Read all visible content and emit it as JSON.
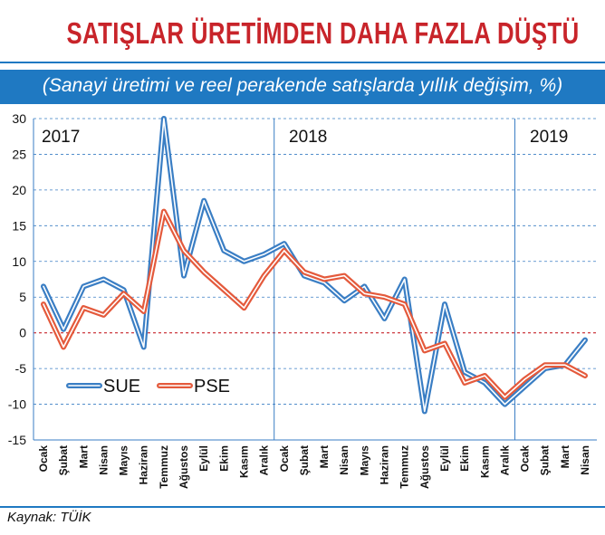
{
  "chart_data": {
    "type": "line",
    "title": "SATIŞLAR ÜRETİMDEN DAHA FAZLA DÜŞTÜ",
    "subtitle": "(Sanayi üretimi ve reel perakende satışlarda yıllık değişim, %)",
    "source": "Kaynak: TÜİK",
    "ylim": [
      -15,
      30
    ],
    "yticks": [
      30,
      25,
      20,
      15,
      10,
      5,
      0,
      -5,
      -10,
      -15
    ],
    "grid": true,
    "legend_position": "bottom-left",
    "categories": [
      "Ocak",
      "Şubat",
      "Mart",
      "Nisan",
      "Mayıs",
      "Haziran",
      "Temmuz",
      "Ağustos",
      "Eylül",
      "Ekim",
      "Kasım",
      "Aralık",
      "Ocak",
      "Şubat",
      "Mart",
      "Nisan",
      "Mayıs",
      "Haziran",
      "Temmuz",
      "Ağustos",
      "Eylül",
      "Ekim",
      "Kasım",
      "Aralık",
      "Ocak",
      "Şubat",
      "Mart",
      "Nisan"
    ],
    "years": [
      {
        "label": "2017",
        "start_index": 0
      },
      {
        "label": "2018",
        "start_index": 12
      },
      {
        "label": "2019",
        "start_index": 24
      }
    ],
    "series": [
      {
        "name": "SUE",
        "color": "#3a7ec4",
        "values": [
          6.5,
          0.5,
          6.5,
          7.5,
          6.0,
          -2.0,
          30.0,
          8.0,
          18.5,
          11.5,
          10.0,
          11.0,
          12.5,
          8.0,
          7.0,
          4.5,
          6.5,
          2.0,
          7.5,
          -11.0,
          4.0,
          -5.5,
          -7.0,
          -10.0,
          -7.5,
          -5.0,
          -4.5,
          -1.0
        ]
      },
      {
        "name": "PSE",
        "color": "#e45a3c",
        "values": [
          4.0,
          -2.0,
          3.5,
          2.5,
          5.5,
          3.0,
          17.0,
          11.5,
          8.5,
          6.0,
          3.5,
          8.0,
          11.5,
          8.5,
          7.5,
          8.0,
          5.5,
          5.0,
          4.0,
          -2.5,
          -1.5,
          -7.0,
          -6.0,
          -9.0,
          -6.5,
          -4.5,
          -4.5,
          -6.0
        ]
      }
    ]
  }
}
